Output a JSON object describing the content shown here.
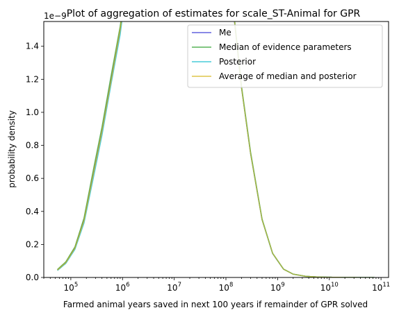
{
  "chart_data": {
    "type": "line",
    "title": "Plot of aggregation of estimates for scale_ST-Animal for GPR",
    "xlabel": "Farmed animal years saved in next 100 years if remainder of GPR solved",
    "ylabel": "probability density",
    "x_scale": "log",
    "y_offset_label": "1e−9",
    "xlim": [
      30000,
      140000000000
    ],
    "ylim": [
      0,
      1.55e-09
    ],
    "x_ticks": [
      {
        "value": 100000,
        "base": "10",
        "exp": "5"
      },
      {
        "value": 1000000,
        "base": "10",
        "exp": "6"
      },
      {
        "value": 10000000,
        "base": "10",
        "exp": "7"
      },
      {
        "value": 100000000,
        "base": "10",
        "exp": "8"
      },
      {
        "value": 1000000000,
        "base": "10",
        "exp": "9"
      },
      {
        "value": 10000000000,
        "base": "10",
        "exp": "10"
      },
      {
        "value": 100000000000,
        "base": "10",
        "exp": "11"
      }
    ],
    "y_ticks": [
      {
        "value": 0.0,
        "label": "0.0"
      },
      {
        "value": 2e-10,
        "label": "0.2"
      },
      {
        "value": 4e-10,
        "label": "0.4"
      },
      {
        "value": 6e-10,
        "label": "0.6"
      },
      {
        "value": 8e-10,
        "label": "0.8"
      },
      {
        "value": 1e-09,
        "label": "1.0"
      },
      {
        "value": 1.2e-09,
        "label": "1.2"
      },
      {
        "value": 1.4e-09,
        "label": "1.4"
      }
    ],
    "legend_position": "top-right",
    "series": [
      {
        "name": "Me",
        "color": "#3b3bd6",
        "x": [
          55000,
          80000,
          120000,
          180000,
          280000,
          400000,
          600000,
          900000,
          1100000,
          130000000,
          200000000,
          300000000,
          500000000,
          800000000,
          1300000000,
          2000000000,
          3500000000,
          6000000000,
          10000000000,
          20000000000,
          40000000000,
          75000000000
        ],
        "y": [
          4.5e-11,
          9e-11,
          1.8e-10,
          3.5e-10,
          6.5e-10,
          8.9e-10,
          1.2e-09,
          1.5e-09,
          1.7e-09,
          1.7e-09,
          1.15e-09,
          7.5e-10,
          3.5e-10,
          1.45e-10,
          5e-11,
          2e-11,
          7e-12,
          3e-12,
          1.5e-12,
          5e-13,
          2e-13,
          1e-13
        ]
      },
      {
        "name": "Median of evidence parameters",
        "color": "#2ca02c",
        "x": [
          55000,
          80000,
          120000,
          180000,
          280000,
          400000,
          600000,
          900000,
          1100000,
          130000000,
          200000000,
          300000000,
          500000000,
          800000000,
          1300000000,
          2000000000,
          3500000000,
          6000000000,
          10000000000,
          20000000000,
          40000000000,
          75000000000
        ],
        "y": [
          4.8e-11,
          9.5e-11,
          1.85e-10,
          3.6e-10,
          6.7e-10,
          9.1e-10,
          1.22e-09,
          1.52e-09,
          1.72e-09,
          1.72e-09,
          1.16e-09,
          7.6e-10,
          3.55e-10,
          1.47e-10,
          5.1e-11,
          2e-11,
          7e-12,
          3e-12,
          1.5e-12,
          5e-13,
          2e-13,
          1e-13
        ]
      },
      {
        "name": "Posterior",
        "color": "#17becf",
        "x": [
          55000,
          80000,
          120000,
          180000,
          280000,
          400000,
          600000,
          900000,
          1100000,
          130000000,
          200000000,
          300000000,
          500000000,
          800000000,
          1300000000,
          2000000000,
          3500000000,
          6000000000,
          10000000000,
          20000000000,
          40000000000,
          75000000000
        ],
        "y": [
          4.2e-11,
          8.5e-11,
          1.7e-10,
          3.3e-10,
          6.2e-10,
          8.6e-10,
          1.17e-09,
          1.47e-09,
          1.68e-09,
          1.71e-09,
          1.15e-09,
          7.5e-10,
          3.5e-10,
          1.45e-10,
          5e-11,
          2e-11,
          7e-12,
          3e-12,
          1.5e-12,
          5e-13,
          2e-13,
          1e-13
        ]
      },
      {
        "name": "Average of median and posterior",
        "color": "#d4b51c",
        "x": [
          55000,
          80000,
          120000,
          180000,
          280000,
          400000,
          600000,
          900000,
          1100000,
          130000000,
          200000000,
          300000000,
          500000000,
          800000000,
          1300000000,
          2000000000,
          3500000000,
          6000000000,
          10000000000,
          20000000000,
          40000000000,
          75000000000
        ],
        "y": [
          4.5e-11,
          9e-11,
          1.78e-10,
          3.45e-10,
          6.45e-10,
          8.85e-10,
          1.19e-09,
          1.5e-09,
          1.7e-09,
          1.71e-09,
          1.15e-09,
          7.5e-10,
          3.5e-10,
          1.46e-10,
          5e-11,
          2e-11,
          7e-12,
          3e-12,
          1.5e-12,
          5e-13,
          2e-13,
          1e-13
        ]
      }
    ]
  }
}
